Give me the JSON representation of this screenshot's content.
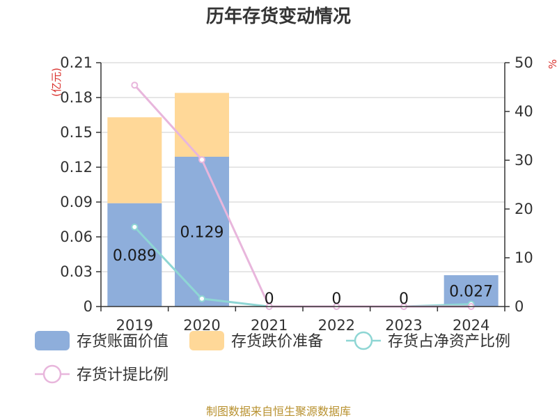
{
  "chart_data": {
    "type": "bar",
    "title": "历年存货变动情况",
    "categories": [
      "2019",
      "2020",
      "2021",
      "2022",
      "2023",
      "2024"
    ],
    "y_left": {
      "label": "(亿元)",
      "ticks": [
        "0",
        "0.03",
        "0.06",
        "0.09",
        "0.12",
        "0.15",
        "0.18",
        "0.21"
      ],
      "range": [
        0,
        0.21
      ]
    },
    "y_right": {
      "label": "%",
      "ticks": [
        "0",
        "10",
        "20",
        "30",
        "40",
        "50"
      ],
      "range": [
        0,
        50
      ]
    },
    "series": [
      {
        "name": "存货账面价值",
        "kind": "bar",
        "stack": "a",
        "axis": "left",
        "color": "#8eaedb",
        "values": [
          0.089,
          0.129,
          0,
          0,
          0,
          0.027
        ],
        "labels": [
          "0.089",
          "0.129",
          "0",
          "0",
          "0",
          "0.027"
        ]
      },
      {
        "name": "存货跌价准备",
        "kind": "bar",
        "stack": "a",
        "axis": "left",
        "color": "#ffd898",
        "values": [
          0.074,
          0.055,
          0,
          0,
          0,
          0
        ]
      },
      {
        "name": "存货占净资产比例",
        "kind": "line",
        "axis": "right",
        "color": "#8ed6d4",
        "values": [
          16.3,
          1.6,
          0,
          0,
          0,
          0.5
        ]
      },
      {
        "name": "存货计提比例",
        "kind": "line",
        "axis": "right",
        "color": "#e8b6dc",
        "values": [
          45.4,
          30.1,
          0,
          0,
          0,
          0
        ]
      }
    ],
    "grid": true,
    "legend": "bottom"
  },
  "source": "制图数据来自恒生聚源数据库"
}
